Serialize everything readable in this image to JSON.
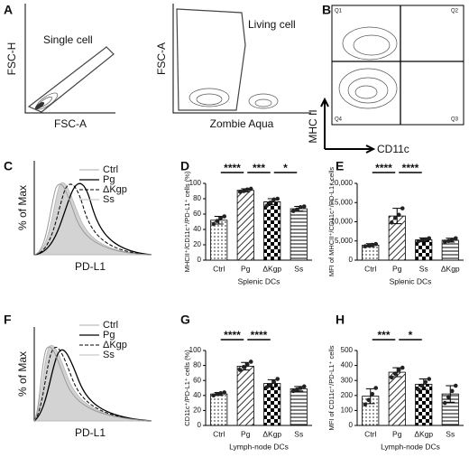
{
  "panel_labels": [
    "A",
    "B",
    "C",
    "D",
    "E",
    "F",
    "G",
    "H"
  ],
  "flow_plots": [
    {
      "gate": "Single cell",
      "x_label": "FSC-A",
      "y_label": "FSC-H"
    },
    {
      "gate": "Living cell",
      "x_label": "Zombie Aqua",
      "y_label": "FSC-A"
    },
    {
      "quadrants": [
        "Q1",
        "Q2",
        "Q4",
        "Q3"
      ],
      "x_label": "CD11c",
      "y_label": "MHC II"
    }
  ],
  "histograms": [
    {
      "legend": [
        "Ctrl",
        "Pg",
        "ΔKgp",
        "Ss"
      ],
      "x_label": "PD-L1",
      "y_label": "% of Max"
    },
    {
      "legend": [
        "Ctrl",
        "Pg",
        "ΔKgp",
        "Ss"
      ],
      "x_label": "PD-L1",
      "y_label": "% of Max"
    }
  ],
  "chart_data": [
    {
      "type": "bar",
      "y_label": "MHCII⁺/CD11c⁺/PD-L1⁺ cells (%)",
      "x_label": "Splenic DCs",
      "categories": [
        "Ctrl",
        "Pg",
        "ΔKgp",
        "Ss"
      ],
      "values": [
        52,
        91,
        76,
        67
      ],
      "errors": [
        5,
        2,
        4,
        3
      ],
      "points": [
        [
          47,
          51,
          55,
          57
        ],
        [
          89,
          90,
          92,
          93
        ],
        [
          71,
          75,
          79,
          80
        ],
        [
          64,
          66,
          69,
          70
        ]
      ],
      "patterns": [
        "dots",
        "diagonal",
        "checker",
        "horizontal"
      ],
      "ylim": [
        0,
        100
      ],
      "yticks": [
        0,
        20,
        40,
        60,
        80,
        100
      ],
      "annotations": [
        {
          "text": "****",
          "between": [
            "Ctrl",
            "Pg"
          ]
        },
        {
          "text": "***",
          "between": [
            "Pg",
            "ΔKgp"
          ]
        },
        {
          "text": "*",
          "between": [
            "ΔKgp",
            "Ss"
          ]
        }
      ]
    },
    {
      "type": "bar",
      "y_label": "MFI of MHCII⁺/CD11c⁺/PD-L1⁺ cells",
      "x_label": "Splenic DCs",
      "categories": [
        "Ctrl",
        "Pg",
        "Ss",
        "ΔKgp"
      ],
      "values": [
        3900,
        11500,
        5300,
        5200
      ],
      "errors": [
        400,
        2000,
        500,
        500
      ],
      "points": [
        [
          3600,
          3800,
          4000,
          4200
        ],
        [
          9800,
          11000,
          11800,
          13500
        ],
        [
          4900,
          5200,
          5400,
          5700
        ],
        [
          4800,
          5000,
          5300,
          5700
        ]
      ],
      "patterns": [
        "dots",
        "diagonal",
        "checker",
        "horizontal"
      ],
      "ylim": [
        0,
        20000
      ],
      "yticks": [
        0,
        {
          "value": 5000,
          "label": "5,000"
        },
        {
          "value": 10000,
          "label": "10,000"
        },
        {
          "value": 15000,
          "label": "15,000"
        },
        {
          "value": 20000,
          "label": "20,000"
        }
      ],
      "annotations": [
        {
          "text": "****",
          "between": [
            "Ctrl",
            "Pg"
          ]
        },
        {
          "text": "****",
          "between": [
            "Pg",
            "Ss"
          ]
        }
      ]
    },
    {
      "type": "bar",
      "y_label": "CD11c⁺/PD-L1⁺ cells (%)",
      "x_label": "Lymph-node DCs",
      "categories": [
        "Ctrl",
        "Pg",
        "ΔKgp",
        "Ss"
      ],
      "values": [
        42,
        79,
        56,
        49
      ],
      "errors": [
        2,
        5,
        5,
        3
      ],
      "points": [
        [
          40,
          42,
          43,
          44
        ],
        [
          74,
          78,
          81,
          85
        ],
        [
          51,
          54,
          58,
          62
        ],
        [
          46,
          48,
          50,
          52
        ]
      ],
      "patterns": [
        "dots",
        "diagonal",
        "checker",
        "horizontal"
      ],
      "ylim": [
        0,
        100
      ],
      "yticks": [
        0,
        20,
        40,
        60,
        80,
        100
      ],
      "annotations": [
        {
          "text": "****",
          "between": [
            "Ctrl",
            "Pg"
          ]
        },
        {
          "text": "****",
          "between": [
            "Pg",
            "ΔKgp"
          ]
        }
      ]
    },
    {
      "type": "bar",
      "y_label": "MFI of CD11c⁺/PD-L1⁺ cells",
      "x_label": "Lymph-node DCs",
      "categories": [
        "Ctrl",
        "Pg",
        "ΔKgp",
        "Ss"
      ],
      "values": [
        195,
        355,
        275,
        210
      ],
      "errors": [
        50,
        30,
        35,
        55
      ],
      "points": [
        [
          140,
          170,
          210,
          250
        ],
        [
          320,
          345,
          370,
          385
        ],
        [
          240,
          265,
          290,
          310
        ],
        [
          150,
          190,
          230,
          265
        ]
      ],
      "patterns": [
        "dots",
        "diagonal",
        "checker",
        "horizontal"
      ],
      "ylim": [
        0,
        500
      ],
      "yticks": [
        0,
        100,
        200,
        300,
        400,
        500
      ],
      "annotations": [
        {
          "text": "***",
          "between": [
            "Ctrl",
            "Pg"
          ]
        },
        {
          "text": "*",
          "between": [
            "Pg",
            "ΔKgp"
          ]
        }
      ]
    }
  ]
}
